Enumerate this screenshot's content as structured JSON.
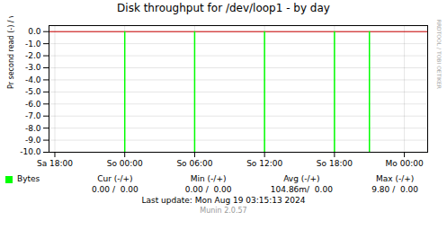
{
  "chart_data": {
    "type": "spike",
    "title": "Disk throughput for /dev/loop1 - by day",
    "ylabel": "Pr second read (-) / write (+)",
    "x": [
      6,
      12,
      18,
      24,
      27
    ],
    "series": [
      {
        "name": "Bytes",
        "color": "#00ff00",
        "values": [
          -10.0,
          -10.0,
          -10.0,
          -10.0,
          -10.0
        ]
      }
    ],
    "reference_lines": [
      {
        "y": 0.0,
        "color": "#cc0000"
      }
    ],
    "xlim": [
      -0.5,
      32
    ],
    "xticks": [
      {
        "value": 0,
        "label": "Sa 18:00"
      },
      {
        "value": 6,
        "label": "So 00:00"
      },
      {
        "value": 12,
        "label": "So 06:00"
      },
      {
        "value": 18,
        "label": "So 12:00"
      },
      {
        "value": 24,
        "label": "So 18:00"
      },
      {
        "value": 30,
        "label": "Mo 00:00"
      }
    ],
    "ylim": [
      -10.0,
      0.5
    ],
    "yticks": [
      {
        "value": 0.0,
        "label": "0.0"
      },
      {
        "value": -1.0,
        "label": "-1.0"
      },
      {
        "value": -2.0,
        "label": "-2.0"
      },
      {
        "value": -3.0,
        "label": "-3.0"
      },
      {
        "value": -4.0,
        "label": "-4.0"
      },
      {
        "value": -5.0,
        "label": "-5.0"
      },
      {
        "value": -6.0,
        "label": "-6.0"
      },
      {
        "value": -7.0,
        "label": "-7.0"
      },
      {
        "value": -8.0,
        "label": "-8.0"
      },
      {
        "value": -9.0,
        "label": "-9.0"
      },
      {
        "value": -10.0,
        "label": "-10.0"
      }
    ],
    "grid": true,
    "side_label": "RRDTOOL / TOBI OETIKER",
    "summary": {
      "columns": [
        "Cur (-/+)",
        "Min (-/+)",
        "Avg (-/+)",
        "Max (-/+)"
      ],
      "rows": [
        [
          "0.00 /  0.00",
          "0.00 /  0.00",
          "104.86m/  0.00",
          "9.80 /  0.00"
        ]
      ]
    },
    "footer": [
      "Last update: Mon Aug 19 03:15:13 2024",
      "Munin 2.0.57"
    ]
  }
}
